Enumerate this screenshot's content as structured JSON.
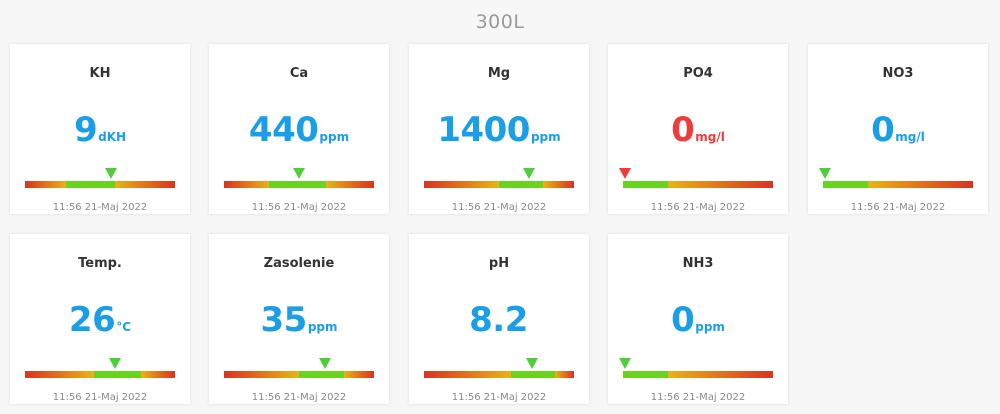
{
  "page_title": "300L",
  "colors": {
    "value": "#1a9ee8",
    "alert": "#ee3b3b",
    "ok_green": "#4fce3c"
  },
  "cards": [
    {
      "id": "kh",
      "name": "KH",
      "value": "9",
      "unit": "dKH",
      "timestamp": "11:56 21-Maj 2022",
      "alert": false,
      "marker": 0.57,
      "range": [
        0.27,
        0.6
      ]
    },
    {
      "id": "ca",
      "name": "Ca",
      "value": "440",
      "unit": "ppm",
      "timestamp": "11:56 21-Maj 2022",
      "alert": false,
      "marker": 0.5,
      "range": [
        0.3,
        0.68
      ]
    },
    {
      "id": "mg",
      "name": "Mg",
      "value": "1400",
      "unit": "ppm",
      "timestamp": "11:56 21-Maj 2022",
      "alert": false,
      "marker": 0.7,
      "range": [
        0.5,
        0.79
      ]
    },
    {
      "id": "po4",
      "name": "PO4",
      "value": "0",
      "unit": "mg/l",
      "timestamp": "11:56 21-Maj 2022",
      "alert": true,
      "marker": 0.0,
      "range": [
        0.0,
        0.3
      ]
    },
    {
      "id": "no3",
      "name": "NO3",
      "value": "0",
      "unit": "mg/l",
      "timestamp": "11:56 21-Maj 2022",
      "alert": false,
      "marker": 0.0,
      "range": [
        0.0,
        0.3
      ]
    },
    {
      "id": "temp",
      "name": "Temp.",
      "value": "26",
      "unit": "°C",
      "timestamp": "11:56 21-Maj 2022",
      "alert": false,
      "marker": 0.6,
      "range": [
        0.46,
        0.77
      ]
    },
    {
      "id": "zasolenie",
      "name": "Zasolenie",
      "value": "35",
      "unit": "ppm",
      "timestamp": "11:56 21-Maj 2022",
      "alert": false,
      "marker": 0.67,
      "range": [
        0.5,
        0.8
      ]
    },
    {
      "id": "ph",
      "name": "pH",
      "value": "8.2",
      "unit": "",
      "timestamp": "11:56 21-Maj 2022",
      "alert": false,
      "marker": 0.72,
      "range": [
        0.58,
        0.87
      ]
    },
    {
      "id": "nh3",
      "name": "NH3",
      "value": "0",
      "unit": "ppm",
      "timestamp": "11:56 21-Maj 2022",
      "alert": false,
      "marker": 0.0,
      "range": [
        0.0,
        0.3
      ]
    }
  ]
}
